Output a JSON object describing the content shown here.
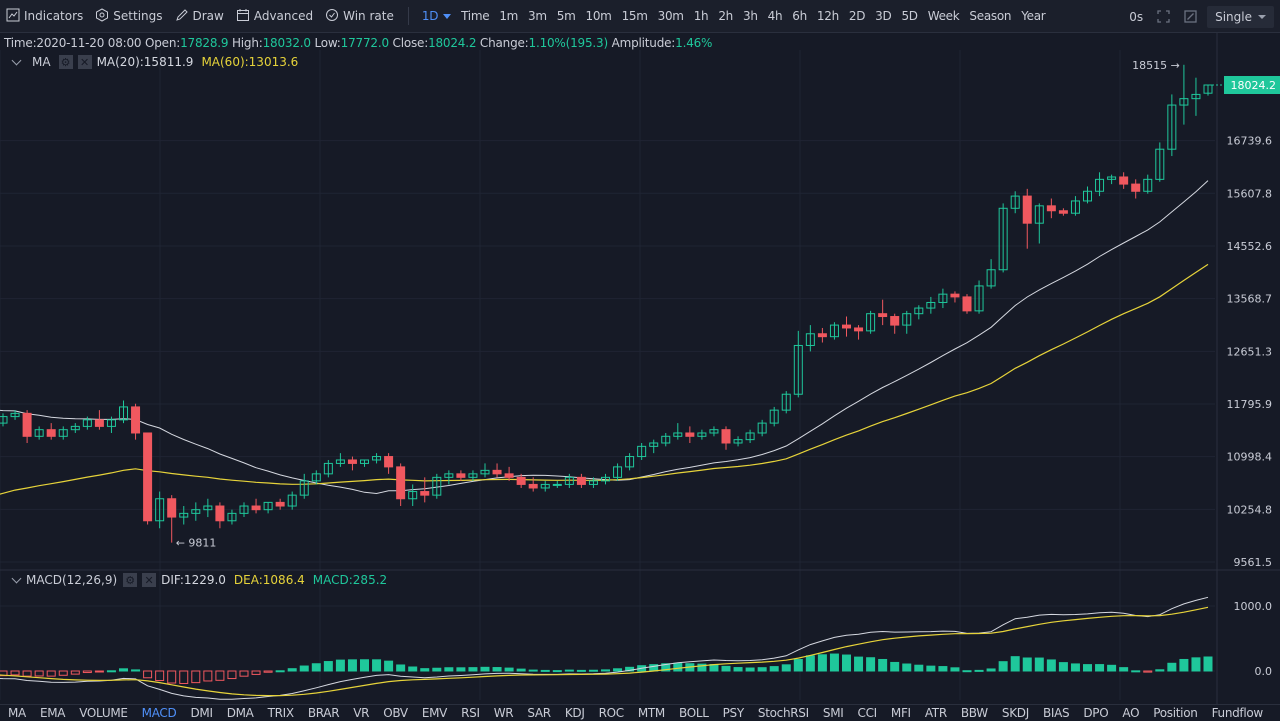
{
  "toolbar": {
    "tools": [
      {
        "id": "indicators",
        "label": "Indicators",
        "icon": "chart-icon"
      },
      {
        "id": "settings",
        "label": "Settings",
        "icon": "gear-icon"
      },
      {
        "id": "draw",
        "label": "Draw",
        "icon": "pencil-icon"
      },
      {
        "id": "advanced",
        "label": "Advanced",
        "icon": "calendar-icon"
      },
      {
        "id": "winrate",
        "label": "Win rate",
        "icon": "gauge-icon"
      }
    ],
    "active_interval": "1D",
    "intervals": [
      "Time",
      "1m",
      "3m",
      "5m",
      "10m",
      "15m",
      "30m",
      "1h",
      "2h",
      "3h",
      "4h",
      "6h",
      "12h",
      "2D",
      "3D",
      "5D",
      "Week",
      "Season",
      "Year"
    ],
    "countdown": "0s",
    "window_select": "Single"
  },
  "info": {
    "time_label": "Time:",
    "time": "2020-11-20 08:00",
    "open_label": "Open:",
    "open": "17828.9",
    "high_label": "High:",
    "high": "18032.0",
    "low_label": "Low:",
    "low": "17772.0",
    "close_label": "Close:",
    "close": "18024.2",
    "change_label": "Change:",
    "change": "1.10%(195.3)",
    "amp_label": "Amplitude:",
    "amp": "1.46%"
  },
  "ma_legend": {
    "name": "MA",
    "ma20": "MA(20):15811.9",
    "ma60": "MA(60):13013.6"
  },
  "macd_legend": {
    "name": "MACD(12,26,9)",
    "dif": "DIF:1229.0",
    "dea": "DEA:1086.4",
    "macd": "MACD:285.2"
  },
  "colors": {
    "up": "#1fc79b",
    "down": "#f0585f",
    "ma20": "#d5d8e0",
    "ma60": "#e6d33a",
    "bg": "#161a26",
    "accent": "#4f8ff7"
  },
  "chart_data": [
    {
      "type": "candlestick",
      "price_axis_ticks": [
        "16739.6",
        "15607.8",
        "14552.6",
        "13568.7",
        "12651.3",
        "11795.9",
        "10998.4",
        "10254.8",
        "9561.5"
      ],
      "last_price": "18024.2",
      "annotations": {
        "high": "18515 →",
        "low": "← 9811"
      },
      "candles": [
        [
          12400,
          12450,
          11900,
          12050
        ],
        [
          12050,
          12100,
          11700,
          11750
        ],
        [
          11750,
          11800,
          11600,
          11650
        ],
        [
          11650,
          11700,
          11550,
          11600
        ],
        [
          11600,
          11750,
          11500,
          11700
        ],
        [
          11700,
          11720,
          11450,
          11500
        ],
        [
          11500,
          11650,
          11450,
          11600
        ],
        [
          11600,
          11700,
          11550,
          11650
        ],
        [
          11650,
          11700,
          11200,
          11300
        ],
        [
          11300,
          11450,
          11250,
          11400
        ],
        [
          11400,
          11500,
          11250,
          11300
        ],
        [
          11300,
          11450,
          11250,
          11400
        ],
        [
          11400,
          11500,
          11350,
          11450
        ],
        [
          11450,
          11600,
          11400,
          11550
        ],
        [
          11550,
          11700,
          11400,
          11450
        ],
        [
          11450,
          11600,
          11350,
          11550
        ],
        [
          11550,
          11850,
          11500,
          11750
        ],
        [
          11750,
          11800,
          11250,
          11350
        ],
        [
          11350,
          11350,
          10050,
          10100
        ],
        [
          10100,
          10500,
          10000,
          10400
        ],
        [
          10400,
          10450,
          9811,
          10150
        ],
        [
          10150,
          10300,
          10050,
          10200
        ],
        [
          10200,
          10350,
          10100,
          10250
        ],
        [
          10250,
          10400,
          10150,
          10300
        ],
        [
          10300,
          10350,
          10000,
          10100
        ],
        [
          10100,
          10250,
          10050,
          10200
        ],
        [
          10200,
          10350,
          10150,
          10300
        ],
        [
          10300,
          10400,
          10200,
          10250
        ],
        [
          10250,
          10350,
          10200,
          10350
        ],
        [
          10350,
          10400,
          10250,
          10300
        ],
        [
          10300,
          10500,
          10250,
          10450
        ],
        [
          10450,
          10750,
          10400,
          10650
        ],
        [
          10650,
          10800,
          10600,
          10750
        ],
        [
          10750,
          10950,
          10700,
          10900
        ],
        [
          10900,
          11050,
          10850,
          10950
        ],
        [
          10950,
          11000,
          10800,
          10900
        ],
        [
          10900,
          10950,
          10850,
          10950
        ],
        [
          10950,
          11050,
          10900,
          11000
        ],
        [
          11000,
          11050,
          10750,
          10850
        ],
        [
          10850,
          10900,
          10300,
          10400
        ],
        [
          10400,
          10600,
          10300,
          10500
        ],
        [
          10500,
          10700,
          10350,
          10450
        ],
        [
          10450,
          10750,
          10400,
          10700
        ],
        [
          10700,
          10800,
          10600,
          10750
        ],
        [
          10750,
          10800,
          10650,
          10700
        ],
        [
          10700,
          10800,
          10650,
          10750
        ],
        [
          10750,
          10900,
          10700,
          10800
        ],
        [
          10800,
          10900,
          10700,
          10750
        ],
        [
          10750,
          10850,
          10650,
          10700
        ],
        [
          10700,
          10750,
          10550,
          10600
        ],
        [
          10600,
          10700,
          10500,
          10550
        ],
        [
          10550,
          10650,
          10500,
          10600
        ],
        [
          10600,
          10650,
          10550,
          10600
        ],
        [
          10600,
          10750,
          10550,
          10700
        ],
        [
          10700,
          10750,
          10550,
          10600
        ],
        [
          10600,
          10700,
          10550,
          10650
        ],
        [
          10650,
          10750,
          10600,
          10700
        ],
        [
          10700,
          10900,
          10650,
          10850
        ],
        [
          10850,
          11050,
          10800,
          11000
        ],
        [
          11000,
          11200,
          10950,
          11150
        ],
        [
          11150,
          11250,
          11050,
          11200
        ],
        [
          11200,
          11350,
          11150,
          11300
        ],
        [
          11300,
          11500,
          11250,
          11350
        ],
        [
          11350,
          11450,
          11200,
          11300
        ],
        [
          11300,
          11400,
          11250,
          11350
        ],
        [
          11350,
          11450,
          11300,
          11400
        ],
        [
          11400,
          11450,
          11100,
          11200
        ],
        [
          11200,
          11300,
          11150,
          11250
        ],
        [
          11250,
          11400,
          11200,
          11350
        ],
        [
          11350,
          11550,
          11300,
          11500
        ],
        [
          11500,
          11750,
          11450,
          11700
        ],
        [
          11700,
          12000,
          11650,
          11950
        ],
        [
          11950,
          13000,
          11900,
          12750
        ],
        [
          12750,
          13100,
          12650,
          12950
        ],
        [
          12950,
          13050,
          12800,
          12900
        ],
        [
          12900,
          13150,
          12850,
          13100
        ],
        [
          13100,
          13250,
          12900,
          13050
        ],
        [
          13050,
          13100,
          12850,
          13000
        ],
        [
          13000,
          13350,
          12950,
          13300
        ],
        [
          13300,
          13550,
          13100,
          13250
        ],
        [
          13250,
          13300,
          12950,
          13100
        ],
        [
          13100,
          13350,
          12950,
          13300
        ],
        [
          13300,
          13450,
          13200,
          13400
        ],
        [
          13400,
          13600,
          13300,
          13500
        ],
        [
          13500,
          13750,
          13400,
          13650
        ],
        [
          13650,
          13700,
          13500,
          13600
        ],
        [
          13600,
          13650,
          13300,
          13350
        ],
        [
          13350,
          13900,
          13300,
          13800
        ],
        [
          13800,
          14300,
          13750,
          14100
        ],
        [
          14100,
          15400,
          14050,
          15300
        ],
        [
          15300,
          15650,
          15200,
          15550
        ],
        [
          15550,
          15700,
          14500,
          15000
        ],
        [
          15000,
          15400,
          14600,
          15350
        ],
        [
          15350,
          15500,
          15100,
          15250
        ],
        [
          15250,
          15300,
          15150,
          15200
        ],
        [
          15200,
          15550,
          15150,
          15450
        ],
        [
          15450,
          15750,
          15400,
          15650
        ],
        [
          15650,
          16050,
          15550,
          15900
        ],
        [
          15900,
          16000,
          15800,
          15950
        ],
        [
          15950,
          16050,
          15700,
          15800
        ],
        [
          15800,
          15900,
          15500,
          15650
        ],
        [
          15650,
          16000,
          15600,
          15900
        ],
        [
          15900,
          16700,
          15850,
          16550
        ],
        [
          16550,
          17800,
          16400,
          17550
        ],
        [
          17550,
          18515,
          17100,
          17700
        ],
        [
          17700,
          18200,
          17300,
          17800
        ],
        [
          17828.9,
          18032,
          17772,
          18024.2
        ]
      ]
    },
    {
      "type": "bar",
      "axis_ticks": [
        "1000.0",
        "0.0"
      ],
      "series": "MACD histogram, DIF and DEA lines"
    }
  ],
  "indicators": [
    "MA",
    "EMA",
    "VOLUME",
    "MACD",
    "DMI",
    "DMA",
    "TRIX",
    "BRAR",
    "VR",
    "OBV",
    "EMV",
    "RSI",
    "WR",
    "SAR",
    "KDJ",
    "ROC",
    "MTM",
    "BOLL",
    "PSY",
    "StochRSI",
    "SMI",
    "CCI",
    "MFI",
    "ATR",
    "BBW",
    "SKDJ",
    "BIAS",
    "DPO",
    "AO",
    "Position",
    "Fundflow"
  ],
  "active_indicator": "MACD"
}
